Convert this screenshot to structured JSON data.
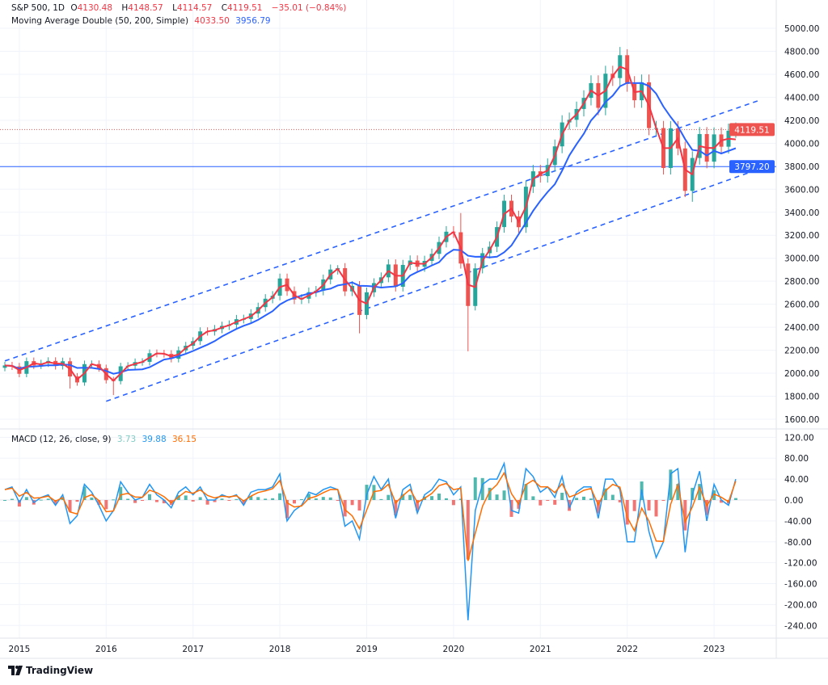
{
  "header": {
    "symbol": "S&P 500, 1D",
    "open_label": "O",
    "open": "4130.48",
    "high_label": "H",
    "high": "4148.57",
    "low_label": "L",
    "low": "4114.57",
    "close_label": "C",
    "close": "4119.51",
    "change": "−35.01 (−0.84%)",
    "ma_label": "Moving Average Double (50, 200, Simple)",
    "ma50_value": "4033.50",
    "ma200_value": "3956.79",
    "macd_label": "MACD (12, 26, close, 9)",
    "macd_hist_value": "3.73",
    "macd_value": "39.88",
    "macd_signal_value": "36.15"
  },
  "price_labels": {
    "last": "4119.51",
    "hline": "3797.20"
  },
  "footer": {
    "brand": "TradingView"
  },
  "colors": {
    "up": "#26a69a",
    "down": "#ef5350",
    "ma50": "#f23645",
    "ma200": "#2962ff",
    "macd": "#2196f3",
    "signal": "#ff6d00",
    "hline": "#2962ff",
    "channel": "#2962ff"
  },
  "chart_data": [
    {
      "type": "candlestick",
      "title": "S&P 500, 1D",
      "start_month": "2014-11",
      "closes": [
        2068,
        2059,
        1995,
        2105,
        2068,
        2086,
        2107,
        2063,
        2104,
        1972,
        1920,
        2079,
        2080,
        2044,
        1940,
        1932,
        2060,
        2065,
        2097,
        2099,
        2174,
        2171,
        2168,
        2126,
        2199,
        2239,
        2279,
        2364,
        2363,
        2384,
        2412,
        2423,
        2470,
        2472,
        2519,
        2575,
        2648,
        2674,
        2824,
        2714,
        2641,
        2648,
        2705,
        2718,
        2816,
        2902,
        2914,
        2712,
        2760,
        2507,
        2704,
        2784,
        2834,
        2946,
        2752,
        2942,
        2980,
        2926,
        2977,
        3038,
        3141,
        3231,
        3226,
        2954,
        2585,
        2912,
        3044,
        3100,
        3271,
        3500,
        3363,
        3270,
        3622,
        3756,
        3714,
        3811,
        3973,
        4181,
        4204,
        4298,
        4395,
        4523,
        4308,
        4605,
        4567,
        4766,
        4516,
        4374,
        4530,
        4132,
        4132,
        3785,
        4130,
        3955,
        3586,
        3872,
        4080,
        3840,
        4077,
        3970,
        4109,
        4119
      ],
      "notable_lows": {
        "2015-08": 1867,
        "2016-02": 1810,
        "2018-12": 2347,
        "2020-03": 2191,
        "2022-10": 3491
      },
      "notable_highs": {
        "2022-01": 4818,
        "2020-02": 3393,
        "2018-09": 2940
      },
      "yticks": [
        5000,
        4800,
        4600,
        4400,
        4200,
        4000,
        3800,
        3600,
        3400,
        3200,
        3000,
        2800,
        2600,
        2400,
        2200,
        2000,
        1800,
        1600
      ],
      "ytick_labels": [
        "5000.00",
        "4800.00",
        "4600.00",
        "4400.00",
        "4200.00",
        "4000.00",
        "3800.00",
        "3600.00",
        "3400.00",
        "3200.00",
        "3000.00",
        "2800.00",
        "2600.00",
        "2400.00",
        "2200.00",
        "2000.00",
        "1800.00",
        "1600.00"
      ],
      "ylim": [
        1550,
        5050
      ],
      "xtick_labels": [
        "2015",
        "2016",
        "2017",
        "2018",
        "2019",
        "2020",
        "2021",
        "2022",
        "2023"
      ],
      "moving_averages": [
        {
          "name": "MA 50",
          "value": 4033.5
        },
        {
          "name": "MA 200",
          "value": 3956.79
        }
      ],
      "horizontal_line": 3797.2,
      "last_price_line": 4119.51,
      "channel_lines": [
        {
          "from": [
            "2014-11",
            2107
          ],
          "to": [
            "2023-07",
            4368
          ]
        },
        {
          "from": [
            "2016-01",
            1756
          ],
          "to": [
            "2023-07",
            3771
          ]
        }
      ]
    },
    {
      "type": "line",
      "title": "MACD (12, 26, close, 9)",
      "macd": [
        20,
        25,
        -5,
        20,
        -5,
        5,
        10,
        -10,
        10,
        -45,
        -30,
        30,
        15,
        -10,
        -40,
        -20,
        35,
        15,
        0,
        5,
        30,
        10,
        0,
        -15,
        15,
        25,
        10,
        25,
        0,
        0,
        10,
        5,
        10,
        -10,
        15,
        20,
        20,
        25,
        50,
        -40,
        -20,
        -10,
        15,
        10,
        20,
        25,
        20,
        -50,
        -40,
        -75,
        10,
        45,
        20,
        40,
        -35,
        20,
        30,
        -25,
        10,
        20,
        40,
        35,
        10,
        25,
        -230,
        -20,
        30,
        40,
        40,
        70,
        -20,
        -25,
        60,
        45,
        15,
        25,
        5,
        45,
        -15,
        15,
        25,
        25,
        -35,
        40,
        40,
        20,
        -80,
        -80,
        20,
        -60,
        -110,
        -80,
        50,
        60,
        -100,
        10,
        55,
        -40,
        30,
        0,
        -10,
        39.88
      ],
      "last": {
        "histogram": 3.73,
        "macd": 39.88,
        "signal": 36.15
      },
      "yticks": [
        120,
        80,
        40,
        0,
        -40,
        -80,
        -120,
        -160,
        -200,
        -240
      ],
      "ytick_labels": [
        "120.00",
        "80.00",
        "40.00",
        "0.00",
        "-40.00",
        "-80.00",
        "-120.00",
        "-160.00",
        "-200.00",
        "-240.00"
      ],
      "ylim": [
        -250,
        130
      ]
    }
  ]
}
